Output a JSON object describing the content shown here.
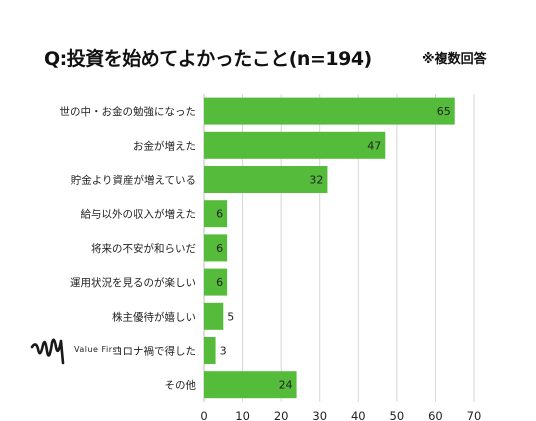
{
  "header": {
    "title": "Q:投資を始めてよかったこと(n=194)",
    "note": "※複数回答"
  },
  "logo": {
    "name": "Value First"
  },
  "colors": {
    "bar": "#55bb3a",
    "grid": "#d6d6d6",
    "text": "#222222"
  },
  "chart_data": {
    "type": "bar",
    "orientation": "horizontal",
    "categories": [
      "世の中・お金の勉強になった",
      "お金が増えた",
      "貯金より資産が増えている",
      "給与以外の収入が増えた",
      "将来の不安が和らいだ",
      "運用状況を見るのが楽しい",
      "株主優待が嬉しい",
      "コロナ禍で得した",
      "その他"
    ],
    "values": [
      65,
      47,
      32,
      6,
      6,
      6,
      5,
      3,
      24
    ],
    "xlim": [
      0,
      70
    ],
    "xticks": [
      0,
      10,
      20,
      30,
      40,
      50,
      60,
      70
    ],
    "grid": true,
    "data_labels": true
  }
}
